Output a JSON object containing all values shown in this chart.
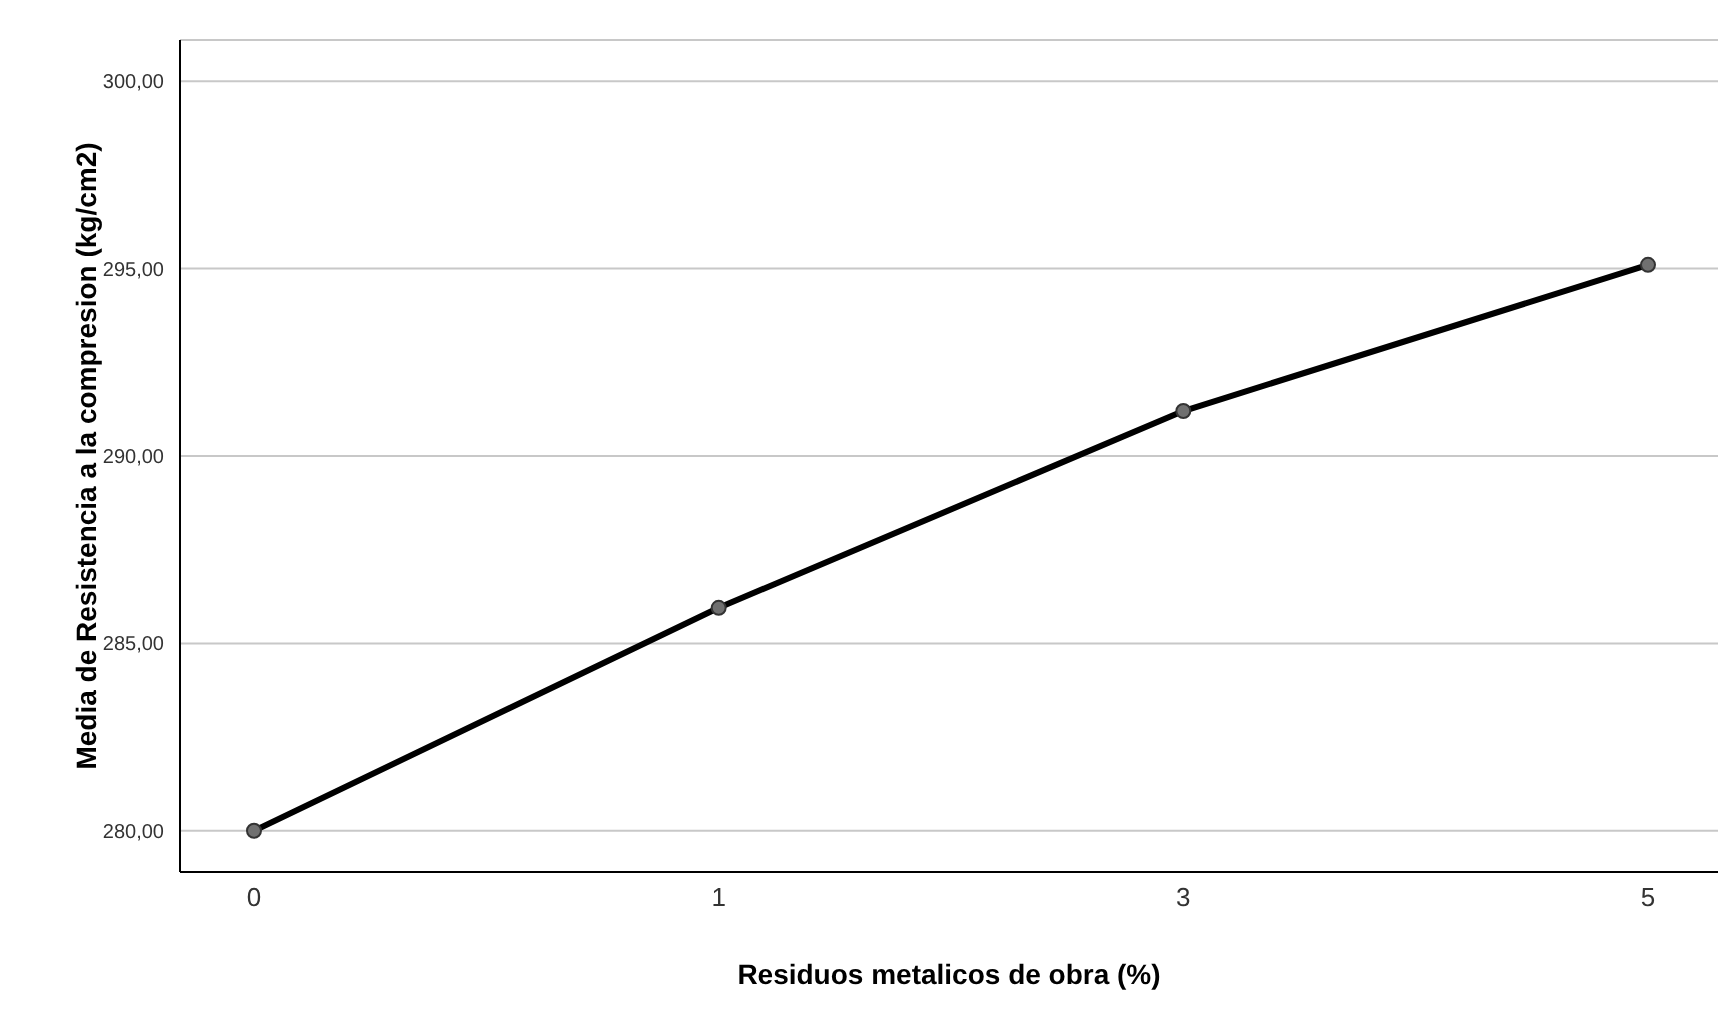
{
  "chart_data": {
    "type": "line",
    "xlabel": "Residuos metalicos de obra (%)",
    "ylabel": "Media de Resistencia a la compresion (kg/cm2)",
    "categories": [
      "0",
      "1",
      "3",
      "5"
    ],
    "series": [
      {
        "color": "#000000",
        "values": [
          280.0,
          285.95,
          291.2,
          295.1
        ]
      }
    ],
    "ylim": [
      278.9,
      301.1
    ],
    "yticks": [
      {
        "value": 280,
        "label": "280,00"
      },
      {
        "value": 285,
        "label": "285,00"
      },
      {
        "value": 290,
        "label": "290,00"
      },
      {
        "value": 295,
        "label": "295,00"
      },
      {
        "value": 300,
        "label": "300,00"
      }
    ],
    "grid": "y",
    "marker": "circle",
    "line_style": "solid",
    "legend": false
  }
}
